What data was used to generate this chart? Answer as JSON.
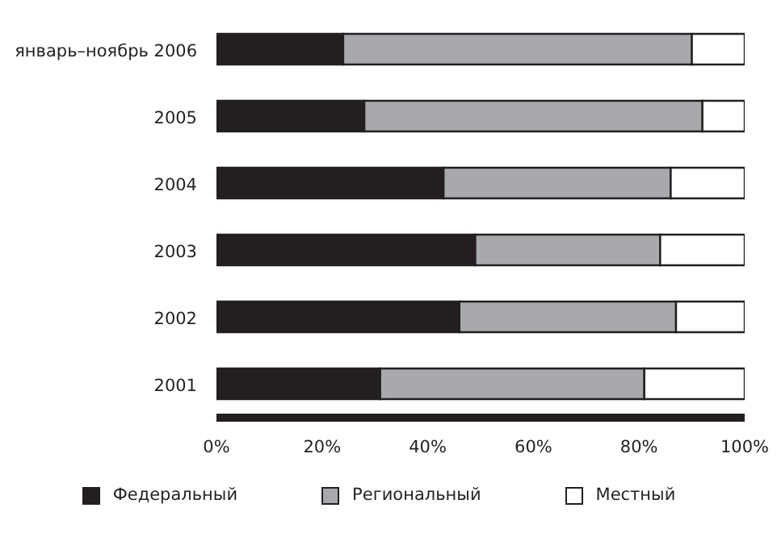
{
  "chart_data": {
    "type": "bar",
    "orientation": "horizontal",
    "stacked": true,
    "categories": [
      "январь–ноябрь 2006",
      "2005",
      "2004",
      "2003",
      "2002",
      "2001"
    ],
    "series": [
      {
        "name": "Федеральный",
        "color": "#231f20",
        "values": [
          24,
          28,
          43,
          49,
          46,
          31
        ]
      },
      {
        "name": "Региональный",
        "color": "#a7a9ac",
        "values": [
          66,
          64,
          43,
          35,
          41,
          50
        ]
      },
      {
        "name": "Местный",
        "color": "#ffffff",
        "values": [
          10,
          8,
          14,
          16,
          13,
          19
        ]
      }
    ],
    "xlim": [
      0,
      100
    ],
    "xticks": [
      {
        "value": 0,
        "label": "0%"
      },
      {
        "value": 20,
        "label": "20%"
      },
      {
        "value": 40,
        "label": "40%"
      },
      {
        "value": 60,
        "label": "60%"
      },
      {
        "value": 80,
        "label": "80%"
      },
      {
        "value": 100,
        "label": "100%"
      }
    ],
    "grid": false,
    "legend": "bottom"
  }
}
